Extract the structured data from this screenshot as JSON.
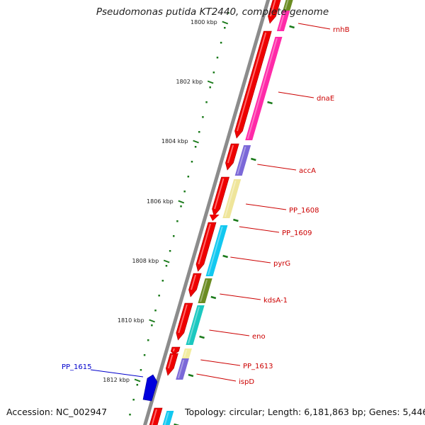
{
  "title": "Pseudomonas putida KT2440, complete genome",
  "footer": {
    "accession": "Accession: NC_002947",
    "topology": "Topology: circular; Length: 6,181,863 bp; Genes: 5,446"
  },
  "ticks": [
    "1800 kbp",
    "1802 kbp",
    "1804 kbp",
    "1806 kbp",
    "1808 kbp",
    "1810 kbp",
    "1812 kbp"
  ],
  "genes": [
    {
      "name": "rnhB",
      "color": "#cc0000"
    },
    {
      "name": "dnaE",
      "color": "#cc0000"
    },
    {
      "name": "accA",
      "color": "#cc0000"
    },
    {
      "name": "PP_1608",
      "color": "#cc0000"
    },
    {
      "name": "PP_1609",
      "color": "#cc0000"
    },
    {
      "name": "pyrG",
      "color": "#cc0000"
    },
    {
      "name": "kdsA-1",
      "color": "#cc0000"
    },
    {
      "name": "eno",
      "color": "#cc0000"
    },
    {
      "name": "PP_1613",
      "color": "#cc0000"
    },
    {
      "name": "ispD",
      "color": "#cc0000"
    },
    {
      "name": "PP_1615",
      "color": "#0000cc"
    }
  ],
  "colors": {
    "backbone": "#8c8c8c",
    "forward_strand": "#ee0000",
    "reverse_strand": "#0000dd",
    "tick_marks": "#1a7a1a",
    "cog_magenta": "#ff2aa8",
    "cog_purple": "#7b68d8",
    "cog_cream": "#efe59a",
    "cog_cyan": "#12c8f0",
    "cog_olive": "#6b8c22",
    "cog_teal": "#1bc8c0",
    "cog_pale_yellow": "#f2ec9e"
  }
}
